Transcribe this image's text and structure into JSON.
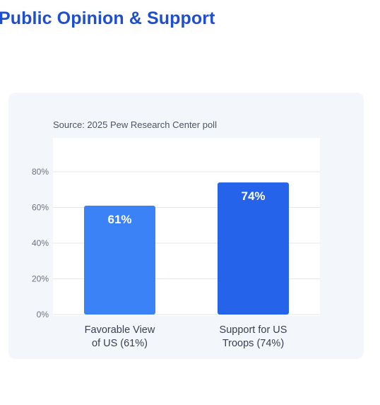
{
  "header": {
    "title": "Public Opinion & Support"
  },
  "chart_data": {
    "type": "bar",
    "source": "Source: 2025 Pew Research Center poll",
    "categories": [
      [
        "Favorable View",
        "of US (61%)"
      ],
      [
        "Support for US",
        "Troops (74%)"
      ]
    ],
    "values": [
      61,
      74
    ],
    "data_labels": [
      "61%",
      "74%"
    ],
    "colors": [
      "#3b82f6",
      "#2563eb"
    ],
    "ylim": [
      0,
      80
    ],
    "yticks": [
      {
        "value": 0,
        "label": "0%"
      },
      {
        "value": 20,
        "label": "20%"
      },
      {
        "value": 40,
        "label": "40%"
      },
      {
        "value": 60,
        "label": "60%"
      },
      {
        "value": 80,
        "label": "80%"
      }
    ],
    "grid": true,
    "legend": "none"
  }
}
